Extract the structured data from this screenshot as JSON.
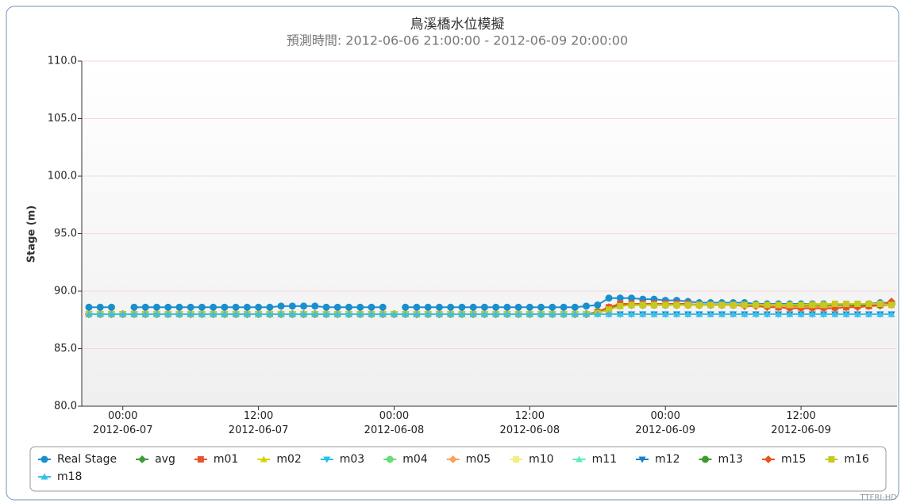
{
  "chart_data": {
    "type": "line",
    "title": "鳥溪橋水位模擬",
    "subtitle": "預測時間: 2012-06-06 21:00:00 - 2012-06-09 20:00:00",
    "y_label": "Stage (m)",
    "credit": "TTFRI-HD",
    "x": [
      "2012-06-06 21:00",
      "2012-06-06 22:00",
      "2012-06-06 23:00",
      "2012-06-07 00:00",
      "2012-06-07 01:00",
      "2012-06-07 02:00",
      "2012-06-07 03:00",
      "2012-06-07 04:00",
      "2012-06-07 05:00",
      "2012-06-07 06:00",
      "2012-06-07 07:00",
      "2012-06-07 08:00",
      "2012-06-07 09:00",
      "2012-06-07 10:00",
      "2012-06-07 11:00",
      "2012-06-07 12:00",
      "2012-06-07 13:00",
      "2012-06-07 14:00",
      "2012-06-07 15:00",
      "2012-06-07 16:00",
      "2012-06-07 17:00",
      "2012-06-07 18:00",
      "2012-06-07 19:00",
      "2012-06-07 20:00",
      "2012-06-07 21:00",
      "2012-06-07 22:00",
      "2012-06-07 23:00",
      "2012-06-08 00:00",
      "2012-06-08 01:00",
      "2012-06-08 02:00",
      "2012-06-08 03:00",
      "2012-06-08 04:00",
      "2012-06-08 05:00",
      "2012-06-08 06:00",
      "2012-06-08 07:00",
      "2012-06-08 08:00",
      "2012-06-08 09:00",
      "2012-06-08 10:00",
      "2012-06-08 11:00",
      "2012-06-08 12:00",
      "2012-06-08 13:00",
      "2012-06-08 14:00",
      "2012-06-08 15:00",
      "2012-06-08 16:00",
      "2012-06-08 17:00",
      "2012-06-08 18:00",
      "2012-06-08 19:00",
      "2012-06-08 20:00",
      "2012-06-08 21:00",
      "2012-06-08 22:00",
      "2012-06-08 23:00",
      "2012-06-09 00:00",
      "2012-06-09 01:00",
      "2012-06-09 02:00",
      "2012-06-09 03:00",
      "2012-06-09 04:00",
      "2012-06-09 05:00",
      "2012-06-09 06:00",
      "2012-06-09 07:00",
      "2012-06-09 08:00",
      "2012-06-09 09:00",
      "2012-06-09 10:00",
      "2012-06-09 11:00",
      "2012-06-09 12:00",
      "2012-06-09 13:00",
      "2012-06-09 14:00",
      "2012-06-09 15:00",
      "2012-06-09 16:00",
      "2012-06-09 17:00",
      "2012-06-09 18:00",
      "2012-06-09 19:00",
      "2012-06-09 20:00"
    ],
    "xlim": [
      "2012-06-06 21:00",
      "2012-06-09 20:00"
    ],
    "xticks": [
      {
        "value": "2012-06-07 00:00",
        "label": "00:00 2012-06-07"
      },
      {
        "value": "2012-06-07 12:00",
        "label": "12:00 2012-06-07"
      },
      {
        "value": "2012-06-08 00:00",
        "label": "00:00 2012-06-08"
      },
      {
        "value": "2012-06-08 12:00",
        "label": "12:00 2012-06-08"
      },
      {
        "value": "2012-06-09 00:00",
        "label": "00:00 2012-06-09"
      },
      {
        "value": "2012-06-09 12:00",
        "label": "12:00 2012-06-09"
      }
    ],
    "ylim": [
      80,
      110
    ],
    "yticks": [
      {
        "value": 80,
        "label": "80.0"
      },
      {
        "value": 85,
        "label": "85.0"
      },
      {
        "value": 90,
        "label": "90.0"
      },
      {
        "value": 95,
        "label": "95.0"
      },
      {
        "value": 100,
        "label": "100.0"
      },
      {
        "value": 105,
        "label": "105.0"
      },
      {
        "value": 110,
        "label": "110.0"
      }
    ],
    "grid": true,
    "series": [
      {
        "name": "Real Stage",
        "color": "#1a8fd0",
        "marker": "circle",
        "values": [
          88.6,
          88.6,
          88.6,
          null,
          88.6,
          88.6,
          88.6,
          88.6,
          88.6,
          88.6,
          88.6,
          88.6,
          88.6,
          88.6,
          88.6,
          88.6,
          88.6,
          88.7,
          88.7,
          88.7,
          88.7,
          88.6,
          88.6,
          88.6,
          88.6,
          88.6,
          88.6,
          null,
          88.6,
          88.6,
          88.6,
          88.6,
          88.6,
          88.6,
          88.6,
          88.6,
          88.6,
          88.6,
          88.6,
          88.6,
          88.6,
          88.6,
          88.6,
          88.6,
          88.7,
          88.8,
          89.4,
          89.4,
          89.4,
          89.3,
          89.3,
          89.2,
          89.2,
          89.1,
          89.0,
          89.0,
          89.0,
          89.0,
          89.0,
          88.9,
          88.9,
          88.9,
          88.9,
          88.9,
          88.9,
          88.9,
          88.8,
          88.8,
          88.8,
          88.9,
          89.0,
          89.0
        ]
      },
      {
        "name": "avg",
        "color": "#3a9b3a",
        "marker": "diamond",
        "values": [
          88,
          88,
          88,
          88,
          88,
          88,
          88,
          88,
          88,
          88,
          88,
          88,
          88,
          88,
          88,
          88,
          88,
          88,
          88,
          88,
          88,
          88,
          88,
          88,
          88,
          88,
          88,
          88,
          88,
          88,
          88,
          88,
          88,
          88,
          88,
          88,
          88,
          88,
          88,
          88,
          88,
          88,
          88,
          88,
          88,
          88.2,
          88.5,
          88.8,
          88.8,
          88.8,
          88.8,
          88.8,
          88.8,
          88.8,
          88.8,
          88.8,
          88.8,
          88.8,
          88.8,
          88.8,
          88.7,
          88.7,
          88.7,
          88.7,
          88.7,
          88.7,
          88.8,
          88.8,
          88.8,
          88.8,
          88.8,
          88.9
        ]
      },
      {
        "name": "m01",
        "color": "#e8542a",
        "marker": "square",
        "values": [
          88,
          88,
          88,
          88,
          88,
          88,
          88,
          88,
          88,
          88,
          88,
          88,
          88,
          88,
          88,
          88,
          88,
          88,
          88,
          88,
          88,
          88,
          88,
          88,
          88,
          88,
          88,
          88,
          88,
          88,
          88,
          88,
          88,
          88,
          88,
          88,
          88,
          88,
          88,
          88,
          88,
          88,
          88,
          88,
          88,
          88.2,
          88.6,
          88.9,
          88.9,
          88.9,
          88.9,
          88.9,
          88.9,
          88.9,
          88.8,
          88.8,
          88.8,
          88.8,
          88.8,
          88.8,
          88.7,
          88.6,
          88.6,
          88.6,
          88.6,
          88.6,
          88.6,
          88.6,
          88.7,
          88.7,
          88.8,
          88.9
        ]
      },
      {
        "name": "m02",
        "color": "#d4d400",
        "marker": "triangle",
        "values": [
          88,
          88,
          88,
          88,
          88,
          88,
          88,
          88,
          88,
          88,
          88,
          88,
          88,
          88,
          88,
          88,
          88,
          88,
          88,
          88,
          88,
          88,
          88,
          88,
          88,
          88,
          88,
          88,
          88,
          88,
          88,
          88,
          88,
          88,
          88,
          88,
          88,
          88,
          88,
          88,
          88,
          88,
          88,
          88,
          88,
          88.1,
          88.4,
          88.7,
          88.8,
          88.8,
          88.8,
          88.8,
          88.8,
          88.8,
          88.8,
          88.8,
          88.8,
          88.8,
          88.8,
          88.8,
          88.8,
          88.8,
          88.8,
          88.8,
          88.9,
          88.9,
          88.9,
          88.9,
          88.9,
          88.9,
          88.9,
          89.0
        ]
      },
      {
        "name": "m03",
        "color": "#27c4e8",
        "marker": "triangle-down",
        "values": [
          88,
          88,
          88,
          88,
          88,
          88,
          88,
          88,
          88,
          88,
          88,
          88,
          88,
          88,
          88,
          88,
          88,
          88,
          88,
          88,
          88,
          88,
          88,
          88,
          88,
          88,
          88,
          88,
          88,
          88,
          88,
          88,
          88,
          88,
          88,
          88,
          88,
          88,
          88,
          88,
          88,
          88,
          88,
          88,
          88,
          88,
          88,
          88,
          88,
          88,
          88,
          88,
          88,
          88,
          88,
          88,
          88,
          88,
          88,
          88,
          88,
          88,
          88,
          88,
          88,
          88,
          88,
          88,
          88,
          88,
          88,
          88
        ]
      },
      {
        "name": "m04",
        "color": "#66dd77",
        "marker": "circle",
        "values": [
          88,
          88,
          88,
          88,
          88,
          88,
          88,
          88,
          88,
          88,
          88,
          88,
          88,
          88,
          88,
          88,
          88,
          88,
          88,
          88,
          88,
          88,
          88,
          88,
          88,
          88,
          88,
          88,
          88,
          88,
          88,
          88,
          88,
          88,
          88,
          88,
          88,
          88,
          88,
          88,
          88,
          88,
          88,
          88,
          88,
          88.2,
          88.5,
          88.8,
          88.8,
          88.8,
          88.8,
          88.8,
          88.8,
          88.8,
          88.8,
          88.8,
          88.8,
          88.8,
          88.8,
          88.8,
          88.8,
          88.8,
          88.8,
          88.8,
          88.8,
          88.8,
          88.8,
          88.8,
          88.8,
          88.8,
          88.8,
          88.9
        ]
      },
      {
        "name": "m05",
        "color": "#ff9f5a",
        "marker": "diamond",
        "values": [
          88,
          88,
          88,
          88,
          88,
          88,
          88,
          88,
          88,
          88,
          88,
          88,
          88,
          88,
          88,
          88,
          88,
          88,
          88,
          88,
          88,
          88,
          88,
          88,
          88,
          88,
          88,
          88,
          88,
          88,
          88,
          88,
          88,
          88,
          88,
          88,
          88,
          88,
          88,
          88,
          88,
          88,
          88,
          88,
          88,
          88.2,
          88.6,
          88.9,
          88.9,
          88.9,
          88.9,
          88.9,
          88.8,
          88.8,
          88.8,
          88.8,
          88.8,
          88.8,
          88.8,
          88.7,
          88.7,
          88.7,
          88.6,
          88.6,
          88.6,
          88.6,
          88.6,
          88.6,
          88.6,
          88.7,
          88.7,
          88.8
        ]
      },
      {
        "name": "m10",
        "color": "#f5ee80",
        "marker": "square",
        "values": [
          88,
          88,
          88,
          88,
          88,
          88,
          88,
          88,
          88,
          88,
          88,
          88,
          88,
          88,
          88,
          88,
          88,
          88,
          88,
          88,
          88,
          88,
          88,
          88,
          88,
          88,
          88,
          88,
          88,
          88,
          88,
          88,
          88,
          88,
          88,
          88,
          88,
          88,
          88,
          88,
          88,
          88,
          88,
          88,
          88,
          88.1,
          88.4,
          88.7,
          88.8,
          88.8,
          88.8,
          88.8,
          88.8,
          88.8,
          88.8,
          88.8,
          88.8,
          88.8,
          88.8,
          88.8,
          88.8,
          88.8,
          88.8,
          88.8,
          88.8,
          88.8,
          88.8,
          88.8,
          88.9,
          88.9,
          88.9,
          88.9
        ]
      },
      {
        "name": "m11",
        "color": "#66e8c0",
        "marker": "triangle",
        "values": [
          88,
          88,
          88,
          88,
          88,
          88,
          88,
          88,
          88,
          88,
          88,
          88,
          88,
          88,
          88,
          88,
          88,
          88,
          88,
          88,
          88,
          88,
          88,
          88,
          88,
          88,
          88,
          88,
          88,
          88,
          88,
          88,
          88,
          88,
          88,
          88,
          88,
          88,
          88,
          88,
          88,
          88,
          88,
          88,
          88,
          88,
          88,
          88,
          88,
          88,
          88,
          88,
          88,
          88,
          88,
          88,
          88,
          88,
          88,
          88,
          88,
          88,
          88,
          88,
          88,
          88,
          88,
          88,
          88,
          88,
          88,
          88
        ]
      },
      {
        "name": "m12",
        "color": "#1b7fc9",
        "marker": "triangle-down",
        "values": [
          88,
          88,
          88,
          88,
          88,
          88,
          88,
          88,
          88,
          88,
          88,
          88,
          88,
          88,
          88,
          88,
          88,
          88,
          88,
          88,
          88,
          88,
          88,
          88,
          88,
          88,
          88,
          88,
          88,
          88,
          88,
          88,
          88,
          88,
          88,
          88,
          88,
          88,
          88,
          88,
          88,
          88,
          88,
          88,
          88,
          88,
          88,
          88,
          88,
          88,
          88,
          88,
          88,
          88,
          88,
          88,
          88,
          88,
          88,
          88,
          88,
          88,
          88,
          88,
          88,
          88,
          88,
          88,
          88,
          88,
          88,
          88
        ]
      },
      {
        "name": "m13",
        "color": "#3c9c2c",
        "marker": "circle",
        "values": [
          88,
          88,
          88,
          88,
          88,
          88,
          88,
          88,
          88,
          88,
          88,
          88,
          88,
          88,
          88,
          88,
          88,
          88,
          88,
          88,
          88,
          88,
          88,
          88,
          88,
          88,
          88,
          88,
          88,
          88,
          88,
          88,
          88,
          88,
          88,
          88,
          88,
          88,
          88,
          88,
          88,
          88,
          88,
          88,
          88,
          88.2,
          88.5,
          88.8,
          88.8,
          88.8,
          88.8,
          88.8,
          88.8,
          88.8,
          88.8,
          88.8,
          88.8,
          88.8,
          88.8,
          88.8,
          88.8,
          88.8,
          88.8,
          88.8,
          88.8,
          88.8,
          88.8,
          88.8,
          88.8,
          88.8,
          88.8,
          88.9
        ]
      },
      {
        "name": "m15",
        "color": "#e8541c",
        "marker": "diamond",
        "values": [
          88,
          88,
          88,
          88,
          88,
          88,
          88,
          88,
          88,
          88,
          88,
          88,
          88,
          88,
          88,
          88,
          88,
          88,
          88,
          88,
          88,
          88,
          88,
          88,
          88,
          88,
          88,
          88,
          88,
          88,
          88,
          88,
          88,
          88,
          88,
          88,
          88,
          88,
          88,
          88,
          88,
          88,
          88,
          88,
          88,
          88.2,
          88.6,
          88.9,
          88.9,
          88.9,
          88.9,
          88.9,
          88.9,
          88.8,
          88.8,
          88.8,
          88.8,
          88.8,
          88.7,
          88.7,
          88.6,
          88.6,
          88.5,
          88.5,
          88.5,
          88.5,
          88.5,
          88.6,
          88.6,
          88.7,
          88.8,
          89.1
        ]
      },
      {
        "name": "m16",
        "color": "#c8c820",
        "marker": "square",
        "values": [
          88,
          88,
          88,
          88,
          88,
          88,
          88,
          88,
          88,
          88,
          88,
          88,
          88,
          88,
          88,
          88,
          88,
          88,
          88,
          88,
          88,
          88,
          88,
          88,
          88,
          88,
          88,
          88,
          88,
          88,
          88,
          88,
          88,
          88,
          88,
          88,
          88,
          88,
          88,
          88,
          88,
          88,
          88,
          88,
          88,
          88.1,
          88.4,
          88.7,
          88.8,
          88.8,
          88.8,
          88.8,
          88.8,
          88.8,
          88.8,
          88.8,
          88.8,
          88.8,
          88.8,
          88.8,
          88.8,
          88.8,
          88.8,
          88.8,
          88.8,
          88.8,
          88.9,
          88.9,
          88.9,
          88.9,
          88.9,
          88.8
        ]
      },
      {
        "name": "m18",
        "color": "#3ac0e8",
        "marker": "triangle",
        "values": [
          88,
          88,
          88,
          88,
          88,
          88,
          88,
          88,
          88,
          88,
          88,
          88,
          88,
          88,
          88,
          88,
          88,
          88,
          88,
          88,
          88,
          88,
          88,
          88,
          88,
          88,
          88,
          88,
          88,
          88,
          88,
          88,
          88,
          88,
          88,
          88,
          88,
          88,
          88,
          88,
          88,
          88,
          88,
          88,
          88,
          88,
          88,
          88,
          88,
          88,
          88,
          88,
          88,
          88,
          88,
          88,
          88,
          88,
          88,
          88,
          88,
          88,
          88,
          88,
          88,
          88,
          88,
          88,
          88,
          88,
          88,
          88
        ]
      }
    ]
  }
}
